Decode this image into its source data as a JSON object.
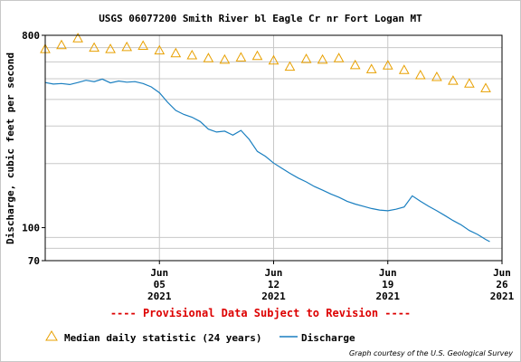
{
  "chart_data": {
    "type": "line",
    "title": "USGS 06077200 Smith River bl Eagle Cr nr Fort Logan MT",
    "ylabel": "Discharge, cubic feet per second",
    "y_scale": "log",
    "ylim": [
      70,
      800
    ],
    "y_ticks": [
      {
        "value": 800,
        "label": "800"
      },
      {
        "value": 100,
        "label": "100"
      },
      {
        "value": 70,
        "label": "70"
      }
    ],
    "y_minor_gridlines": [
      80,
      90,
      200,
      300,
      400,
      500,
      600,
      700
    ],
    "xlim": [
      "2021-05-29",
      "2021-06-26"
    ],
    "x_ticks": [
      {
        "date": "2021-06-05",
        "lines": [
          "Jun",
          "05",
          "2021"
        ]
      },
      {
        "date": "2021-06-12",
        "lines": [
          "Jun",
          "12",
          "2021"
        ]
      },
      {
        "date": "2021-06-19",
        "lines": [
          "Jun",
          "19",
          "2021"
        ]
      },
      {
        "date": "2021-06-26",
        "lines": [
          "Jun",
          "26",
          "2021"
        ]
      }
    ],
    "grid": true,
    "series": [
      {
        "name": "Median daily statistic (24 years)",
        "marker": "triangle",
        "color": "#e8a000",
        "x": [
          "2021-05-29",
          "2021-05-30",
          "2021-05-31",
          "2021-06-01",
          "2021-06-02",
          "2021-06-03",
          "2021-06-04",
          "2021-06-05",
          "2021-06-06",
          "2021-06-07",
          "2021-06-08",
          "2021-06-09",
          "2021-06-10",
          "2021-06-11",
          "2021-06-12",
          "2021-06-13",
          "2021-06-14",
          "2021-06-15",
          "2021-06-16",
          "2021-06-17",
          "2021-06-18",
          "2021-06-19",
          "2021-06-20",
          "2021-06-21",
          "2021-06-22",
          "2021-06-23",
          "2021-06-24",
          "2021-06-25"
        ],
        "values": [
          690,
          720,
          775,
          700,
          690,
          705,
          715,
          680,
          660,
          645,
          625,
          615,
          630,
          640,
          610,
          570,
          620,
          615,
          625,
          580,
          555,
          578,
          550,
          520,
          510,
          490,
          475,
          452
        ]
      },
      {
        "name": "Discharge",
        "marker": "line",
        "color": "#1a7fc0",
        "x": [
          "2021-05-29",
          "2021-05-29T12:00",
          "2021-05-30",
          "2021-05-30T12:00",
          "2021-05-31",
          "2021-05-31T12:00",
          "2021-06-01",
          "2021-06-01T12:00",
          "2021-06-02",
          "2021-06-02T12:00",
          "2021-06-03",
          "2021-06-03T12:00",
          "2021-06-04",
          "2021-06-04T12:00",
          "2021-06-05",
          "2021-06-05T12:00",
          "2021-06-06",
          "2021-06-06T12:00",
          "2021-06-07",
          "2021-06-07T12:00",
          "2021-06-08",
          "2021-06-08T12:00",
          "2021-06-09",
          "2021-06-09T12:00",
          "2021-06-10",
          "2021-06-10T12:00",
          "2021-06-11",
          "2021-06-11T12:00",
          "2021-06-12",
          "2021-06-12T12:00",
          "2021-06-13",
          "2021-06-13T12:00",
          "2021-06-14",
          "2021-06-14T12:00",
          "2021-06-15",
          "2021-06-15T12:00",
          "2021-06-16",
          "2021-06-16T12:00",
          "2021-06-17",
          "2021-06-17T12:00",
          "2021-06-18",
          "2021-06-18T12:00",
          "2021-06-19",
          "2021-06-19T12:00",
          "2021-06-20",
          "2021-06-20T12:00",
          "2021-06-21",
          "2021-06-21T12:00",
          "2021-06-22",
          "2021-06-22T12:00",
          "2021-06-23",
          "2021-06-23T12:00",
          "2021-06-24",
          "2021-06-24T12:00",
          "2021-06-25",
          "2021-06-25T06:00"
        ],
        "values": [
          480,
          472,
          475,
          470,
          480,
          492,
          485,
          498,
          478,
          488,
          482,
          485,
          475,
          458,
          430,
          388,
          355,
          340,
          330,
          315,
          290,
          281,
          284,
          272,
          286,
          260,
          228,
          216,
          201,
          190,
          180,
          171,
          164,
          156,
          150,
          144,
          139,
          133,
          129,
          126,
          123,
          121,
          120,
          122,
          125,
          141,
          133,
          126,
          120,
          114,
          108,
          103,
          97,
          93,
          88,
          86
        ]
      }
    ]
  },
  "notice": "---- Provisional Data Subject to Revision ----",
  "legend": {
    "median_label": "Median daily statistic (24 years)",
    "discharge_label": "Discharge"
  },
  "credit": "Graph courtesy of the U.S. Geological Survey",
  "colors": {
    "median": "#e8a000",
    "discharge": "#1a7fc0",
    "grid": "#c8c8c8",
    "notice": "#dd0000"
  }
}
